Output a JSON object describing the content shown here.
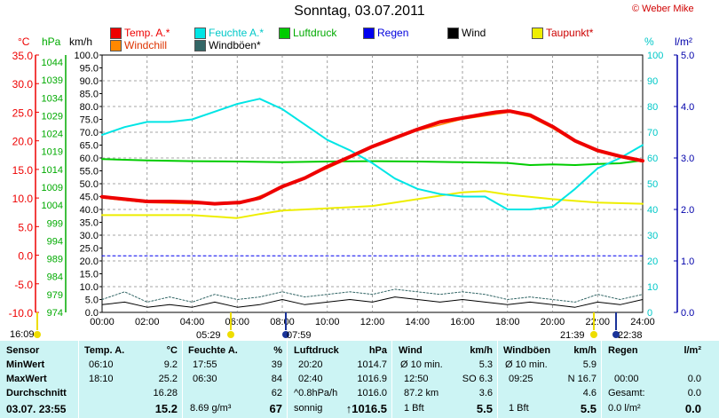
{
  "page": {
    "title": "Sonntag, 03.07.2011",
    "credit": "© Weber Mike"
  },
  "legend": [
    {
      "label": "Temp. A.*",
      "color": "#ee0000",
      "text_color": "#ee0000"
    },
    {
      "label": "Feuchte A.*",
      "color": "#00e5e5",
      "text_color": "#00c8c8"
    },
    {
      "label": "Luftdruck",
      "color": "#00cc00",
      "text_color": "#00aa00"
    },
    {
      "label": "Regen",
      "color": "#0000ee",
      "text_color": "#0000dd"
    },
    {
      "label": "Wind",
      "color": "#000000",
      "text_color": "#000000"
    },
    {
      "label": "Taupunkt*",
      "color": "#eeee00",
      "text_color": "#cc0000"
    },
    {
      "label": "Windchill",
      "color": "#ff8800",
      "text_color": "#dd3300"
    },
    {
      "label": "Windböen*",
      "color": "#336666",
      "text_color": "#000000"
    }
  ],
  "units": {
    "temp": "°C",
    "pressure": "hPa",
    "wind": "km/h",
    "humidity": "%",
    "rain": "l/m²"
  },
  "chart_data": {
    "type": "line",
    "x_ticks": [
      "00:00",
      "02:00",
      "04:00",
      "06:00",
      "08:00",
      "10:00",
      "12:00",
      "14:00",
      "16:00",
      "18:00",
      "20:00",
      "22:00",
      "24:00"
    ],
    "axes": {
      "temp": {
        "ticks": [
          "35.0",
          "30.0",
          "25.0",
          "20.0",
          "15.0",
          "10.0",
          "5.0",
          "0.0",
          "-5.0",
          "-10.0"
        ],
        "range": [
          -10,
          35
        ],
        "color": "#ee0000"
      },
      "pressure": {
        "ticks": [
          "1044",
          "1039",
          "1034",
          "1029",
          "1024",
          "1019",
          "1014",
          "1009",
          "1004",
          "999",
          "994",
          "989",
          "984",
          "979",
          "974"
        ],
        "range": [
          974,
          1044
        ],
        "color": "#00aa00"
      },
      "wind": {
        "ticks": [
          "100.0",
          "95.0",
          "90.0",
          "85.0",
          "80.0",
          "75.0",
          "70.0",
          "65.0",
          "60.0",
          "55.0",
          "50.0",
          "45.0",
          "40.0",
          "35.0",
          "30.0",
          "25.0",
          "20.0",
          "15.0",
          "10.0",
          "5.0",
          "0.0"
        ],
        "range": [
          0,
          100
        ],
        "color": "#000000"
      },
      "humidity": {
        "ticks": [
          "100",
          "90",
          "80",
          "70",
          "60",
          "50",
          "40",
          "30",
          "20",
          "10",
          "0"
        ],
        "range": [
          0,
          100
        ],
        "color": "#00c8c8"
      },
      "rain": {
        "ticks": [
          "5.0",
          "4.0",
          "3.0",
          "2.0",
          "1.0",
          "0.0"
        ],
        "range": [
          0,
          5
        ],
        "color": "#0000aa"
      }
    },
    "series": [
      {
        "name": "Temp. A.*",
        "axis": "temp",
        "color": "#ee0000",
        "width": 4,
        "x": [
          0,
          1,
          2,
          3,
          4,
          5,
          6,
          6.1,
          7,
          8,
          9,
          10,
          11,
          12,
          13,
          14,
          15,
          16,
          17,
          17.5,
          18,
          18.1,
          19,
          20,
          21,
          22,
          23,
          24
        ],
        "y": [
          10.2,
          9.8,
          9.4,
          9.4,
          9.3,
          9.0,
          9.2,
          9.2,
          10.0,
          12.0,
          13.5,
          15.5,
          17.2,
          19.0,
          20.5,
          22.0,
          23.3,
          24.0,
          24.7,
          25.0,
          25.2,
          25.2,
          24.5,
          22.5,
          20.0,
          18.3,
          17.3,
          16.5
        ]
      },
      {
        "name": "Windchill",
        "axis": "temp",
        "color": "#ff8800",
        "width": 1.5,
        "x": [
          0,
          2,
          4,
          6.1,
          8,
          10,
          12,
          14,
          16,
          18.1,
          19,
          20,
          21,
          22,
          23,
          24
        ],
        "y": [
          10.0,
          9.2,
          9.0,
          9.0,
          11.8,
          15.2,
          18.8,
          21.8,
          23.8,
          25.0,
          24.2,
          22.2,
          19.8,
          18.1,
          17.1,
          16.3
        ]
      },
      {
        "name": "Feuchte A.*",
        "axis": "humidity",
        "color": "#00e5e5",
        "width": 2,
        "x": [
          0,
          1,
          2,
          3,
          4,
          5,
          6,
          6.5,
          7,
          8,
          9,
          10,
          11,
          12,
          13,
          14,
          15,
          16,
          17,
          18,
          19,
          20,
          21,
          22,
          23,
          24
        ],
        "y": [
          69,
          72,
          74,
          74,
          75,
          78,
          81,
          82,
          83,
          79,
          73,
          67,
          63,
          58,
          52,
          48,
          46,
          45,
          45,
          40,
          40,
          41,
          48,
          56,
          60,
          65
        ]
      },
      {
        "name": "Luftdruck",
        "axis": "pressure",
        "color": "#00cc00",
        "width": 2,
        "x": [
          0,
          2,
          4,
          6,
          8,
          10,
          12,
          14,
          16,
          18,
          19,
          20,
          21,
          22,
          23,
          24
        ],
        "y": [
          1016.9,
          1016.5,
          1016.3,
          1016.2,
          1016.0,
          1016.2,
          1016.3,
          1016.2,
          1016.0,
          1015.8,
          1015.2,
          1015.4,
          1015.2,
          1015.5,
          1015.7,
          1016.5
        ]
      },
      {
        "name": "Taupunkt*",
        "axis": "temp",
        "color": "#eeee00",
        "width": 2,
        "x": [
          0,
          2,
          4,
          6,
          7,
          8,
          10,
          12,
          13,
          14,
          16,
          17,
          18,
          20,
          22,
          24
        ],
        "y": [
          7.0,
          7.0,
          7.0,
          6.5,
          7.2,
          7.8,
          8.2,
          8.6,
          9.2,
          9.8,
          11.0,
          11.2,
          10.6,
          9.8,
          9.2,
          9.0
        ]
      },
      {
        "name": "Regen",
        "axis": "rain",
        "color": "#0000ee",
        "width": 1,
        "dash": "3,3",
        "x": [
          0,
          24
        ],
        "y": [
          1.1,
          1.1
        ]
      },
      {
        "name": "Wind",
        "axis": "wind",
        "color": "#000000",
        "width": 1,
        "x": [
          0,
          1,
          2,
          3,
          4,
          5,
          6,
          7,
          8,
          9,
          10,
          11,
          12,
          13,
          14,
          15,
          16,
          17,
          18,
          19,
          20,
          21,
          22,
          23,
          24
        ],
        "y": [
          3,
          4,
          2,
          3,
          2,
          4,
          2,
          3,
          5,
          3,
          4,
          5,
          4,
          6,
          5,
          4,
          5,
          4,
          3,
          4,
          3,
          2,
          4,
          3,
          5
        ]
      },
      {
        "name": "Windböen*",
        "axis": "wind",
        "color": "#336666",
        "width": 1,
        "dash": "2,2",
        "x": [
          0,
          1,
          2,
          3,
          4,
          5,
          6,
          7,
          8,
          9,
          10,
          11,
          12,
          13,
          14,
          15,
          16,
          17,
          18,
          19,
          20,
          21,
          22,
          23,
          24
        ],
        "y": [
          5,
          8,
          4,
          6,
          4,
          7,
          5,
          6,
          8,
          6,
          7,
          8,
          7,
          9,
          8,
          7,
          8,
          7,
          5,
          6,
          5,
          4,
          7,
          5,
          7
        ]
      }
    ]
  },
  "markers": {
    "sunrise_left": "16:09",
    "sunrise": "05:29",
    "moon_left": "07:59",
    "sunset": "21:39",
    "moon_right": "22:38"
  },
  "table": {
    "headers": {
      "sensor": "Sensor",
      "temp": "Temp. A.",
      "temp_unit": "°C",
      "hum": "Feuchte A.",
      "hum_unit": "%",
      "press": "Luftdruck",
      "press_unit": "hPa",
      "wind": "Wind",
      "wind_unit": "km/h",
      "gust": "Windböen",
      "gust_unit": "km/h",
      "rain": "Regen",
      "rain_unit": "l/m²"
    },
    "rows": [
      {
        "label": "MinWert",
        "temp_time": "06:10",
        "temp_val": "9.2",
        "hum_time": "17:55",
        "hum_val": "39",
        "press_time": "20:20",
        "press_val": "1014.7",
        "wind_a": "Ø 10 min.",
        "wind_val": "5.3",
        "gust_a": "Ø 10 min.",
        "gust_val": "5.9",
        "rain_a": "",
        "rain_val": ""
      },
      {
        "label": "MaxWert",
        "temp_time": "18:10",
        "temp_val": "25.2",
        "hum_time": "06:30",
        "hum_val": "84",
        "press_time": "02:40",
        "press_val": "1016.9",
        "wind_a": "12:50",
        "wind_b": "SO 6.3",
        "gust_a": "09:25",
        "gust_b": "N 16.7",
        "rain_a": "00:00",
        "rain_val": "0.0"
      },
      {
        "label": "Durchschnitt",
        "temp_time": "",
        "temp_val": "16.28",
        "hum_time": "",
        "hum_val": "62",
        "press_time": "^0.8hPa/h",
        "press_val": "1016.0",
        "wind_a": "87.2 km",
        "wind_val": "3.6",
        "gust_a": "",
        "gust_val": "4.6",
        "rain_a": "Gesamt:",
        "rain_val": "0.0"
      },
      {
        "label": "03.07. 23:55",
        "temp_time": "",
        "temp_val": "15.2",
        "hum_time": "8.69 g/m³",
        "hum_val": "67",
        "press_time": "sonnig",
        "press_val": "↑1016.5",
        "wind_a": "1 Bft",
        "wind_val": "5.5",
        "gust_a": "1 Bft",
        "gust_val": "5.5",
        "rain_a": "0.0 l/m²",
        "rain_val": "0.0"
      }
    ]
  }
}
